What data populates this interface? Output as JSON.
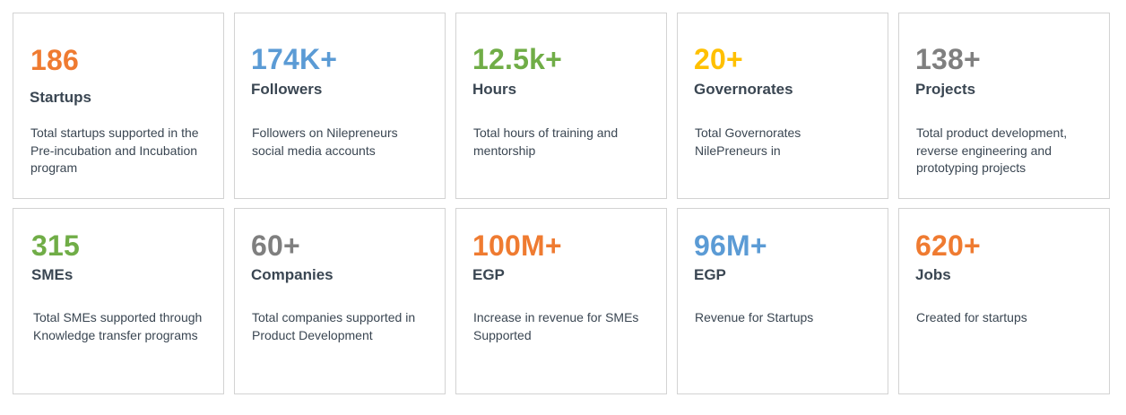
{
  "colors": {
    "orange": "#ef7b31",
    "blue": "#5b9bd5",
    "green": "#70ad47",
    "gold": "#ffc000",
    "gray": "#7f7f7f",
    "text": "#3a4652",
    "border": "#d3d3d3"
  },
  "stats": [
    {
      "value": "186",
      "label": "Startups",
      "description": "Total startups supported in the Pre-incubation and Incubation program",
      "color": "#ef7b31"
    },
    {
      "value": "174K+",
      "label": "Followers",
      "description": "Followers on Nilepreneurs social media accounts",
      "color": "#5b9bd5"
    },
    {
      "value": "12.5k+",
      "label": "Hours",
      "description": "Total hours of training and mentorship",
      "color": "#70ad47"
    },
    {
      "value": "20+",
      "label": "Governorates",
      "description": "Total Governorates NilePreneurs in",
      "color": "#ffc000"
    },
    {
      "value": "138+",
      "label": "Projects",
      "description": "Total product development, reverse engineering and prototyping projects",
      "color": "#7f7f7f"
    },
    {
      "value": "315",
      "label": "SMEs",
      "description": "Total SMEs supported through Knowledge  transfer programs",
      "color": "#70ad47"
    },
    {
      "value": "60+",
      "label": "Companies",
      "description": "Total companies supported in Product Development",
      "color": "#7f7f7f"
    },
    {
      "value": "100M+",
      "label": "EGP",
      "description": "Increase in revenue for SMEs Supported",
      "color": "#ef7b31"
    },
    {
      "value": "96M+",
      "label": "EGP",
      "description": "Revenue for Startups",
      "color": "#5b9bd5"
    },
    {
      "value": "620+",
      "label": "Jobs",
      "description": "Created for startups",
      "color": "#ef7b31"
    }
  ]
}
